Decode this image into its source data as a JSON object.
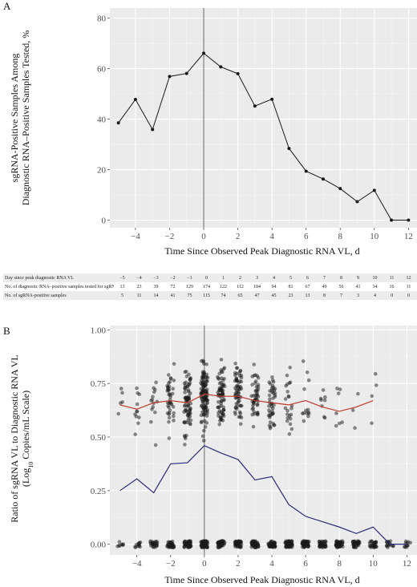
{
  "panels": [
    {
      "letter": "A",
      "xlabel": "Time Since Observed Peak Diagnostic RNA VL, d",
      "ylabel_line1": "sgRNA-Positive Samples Among",
      "ylabel_line2": "Diagnostic RNA–Positive Samples Tested, %"
    },
    {
      "letter": "B",
      "xlabel": "Time Since Observed Peak Diagnostic RNA VL, d",
      "ylabel_line1": "Ratio of sgRNA VL to Diagnostic RNA VL",
      "ylabel_line2": "(Log10 Copies/mL Scale)"
    }
  ],
  "table": {
    "rows": [
      {
        "label": "Day since peak diagnostic RNA VL",
        "values": [
          "−5",
          "−4",
          "−3",
          "−2",
          "−1",
          "0",
          "1",
          "2",
          "3",
          "4",
          "5",
          "6",
          "7",
          "8",
          "9",
          "10",
          "11",
          "12"
        ]
      },
      {
        "label": "No. of diagnostic RNA–positive samples tested for sgRNA",
        "values": [
          "13",
          "23",
          "39",
          "72",
          "129",
          "174",
          "122",
          "112",
          "104",
          "94",
          "81",
          "67",
          "49",
          "56",
          "41",
          "34",
          "16",
          "11"
        ]
      },
      {
        "label": "No. of sgRNA-positive samples",
        "values": [
          "5",
          "11",
          "14",
          "41",
          "75",
          "115",
          "74",
          "65",
          "47",
          "45",
          "23",
          "13",
          "8",
          "7",
          "3",
          "4",
          "0",
          "0"
        ]
      }
    ]
  },
  "chart_data": [
    {
      "type": "line",
      "panel": "A",
      "xlabel": "Time Since Observed Peak Diagnostic RNA VL, d",
      "ylabel": "sgRNA-Positive Samples Among Diagnostic RNA–Positive Samples Tested, %",
      "xlim": [
        -5.5,
        12.5
      ],
      "ylim": [
        -3,
        84
      ],
      "x_ticks": [
        -4,
        -2,
        0,
        2,
        4,
        6,
        8,
        10,
        12
      ],
      "y_ticks": [
        0,
        20,
        40,
        60,
        80
      ],
      "x_tick_labels": [
        "−4",
        "−2",
        "0",
        "2",
        "4",
        "6",
        "8",
        "10",
        "12"
      ],
      "reference_line_x": 0,
      "grid": true,
      "series": [
        {
          "x": [
            -5,
            -4,
            -3,
            -2,
            -1,
            0,
            1,
            2,
            3,
            4,
            5,
            6,
            7,
            8,
            9,
            10,
            11,
            12
          ],
          "y": [
            38.5,
            47.8,
            35.9,
            56.9,
            58.1,
            66.1,
            60.7,
            58.0,
            45.2,
            47.9,
            28.4,
            19.4,
            16.3,
            12.5,
            7.3,
            11.8,
            0,
            0
          ],
          "color": "#1a1a1a"
        }
      ]
    },
    {
      "type": "scatter",
      "panel": "B",
      "xlabel": "Time Since Observed Peak Diagnostic RNA VL, d",
      "ylabel": "Ratio of sgRNA VL to Diagnostic RNA VL (Log10 Copies/mL Scale)",
      "xlim": [
        -5.6,
        12.6
      ],
      "ylim": [
        -0.05,
        1.02
      ],
      "x_ticks": [
        -4,
        -2,
        0,
        2,
        4,
        6,
        8,
        10,
        12
      ],
      "y_ticks": [
        0,
        0.25,
        0.5,
        0.75,
        1.0
      ],
      "x_tick_labels": [
        "−4",
        "−2",
        "0",
        "2",
        "4",
        "6",
        "8",
        "10",
        "12"
      ],
      "y_tick_labels": [
        "0.00",
        "0.25",
        "0.50",
        "0.75",
        "1.00"
      ],
      "reference_line_x": 0,
      "grid": true,
      "days": [
        -5,
        -4,
        -3,
        -2,
        -1,
        0,
        1,
        2,
        3,
        4,
        5,
        6,
        7,
        8,
        9,
        10,
        11,
        12
      ],
      "positive_counts": [
        5,
        11,
        14,
        41,
        75,
        115,
        74,
        65,
        47,
        45,
        23,
        13,
        8,
        7,
        3,
        4,
        0,
        0
      ],
      "tested_counts": [
        13,
        23,
        39,
        72,
        129,
        174,
        122,
        112,
        104,
        94,
        81,
        67,
        49,
        56,
        41,
        34,
        16,
        11
      ],
      "series": [
        {
          "x": [
            -5,
            -4,
            -3,
            -2,
            -1,
            0,
            1,
            2,
            3,
            4,
            5,
            6,
            7,
            8,
            9,
            10
          ],
          "y": [
            0.65,
            0.63,
            0.66,
            0.67,
            0.66,
            0.7,
            0.69,
            0.69,
            0.67,
            0.66,
            0.65,
            0.67,
            0.64,
            0.62,
            0.64,
            0.67
          ],
          "color": "#c0392b"
        },
        {
          "x": [
            -5,
            -4,
            -3,
            -2,
            -1,
            0,
            1,
            2,
            3,
            4,
            5,
            6,
            7,
            8,
            9,
            10,
            11,
            12
          ],
          "y": [
            0.25,
            0.305,
            0.24,
            0.375,
            0.38,
            0.46,
            0.425,
            0.395,
            0.3,
            0.315,
            0.185,
            0.13,
            0.105,
            0.08,
            0.05,
            0.08,
            0,
            0
          ],
          "color": "#2c2c7a"
        }
      ]
    }
  ]
}
